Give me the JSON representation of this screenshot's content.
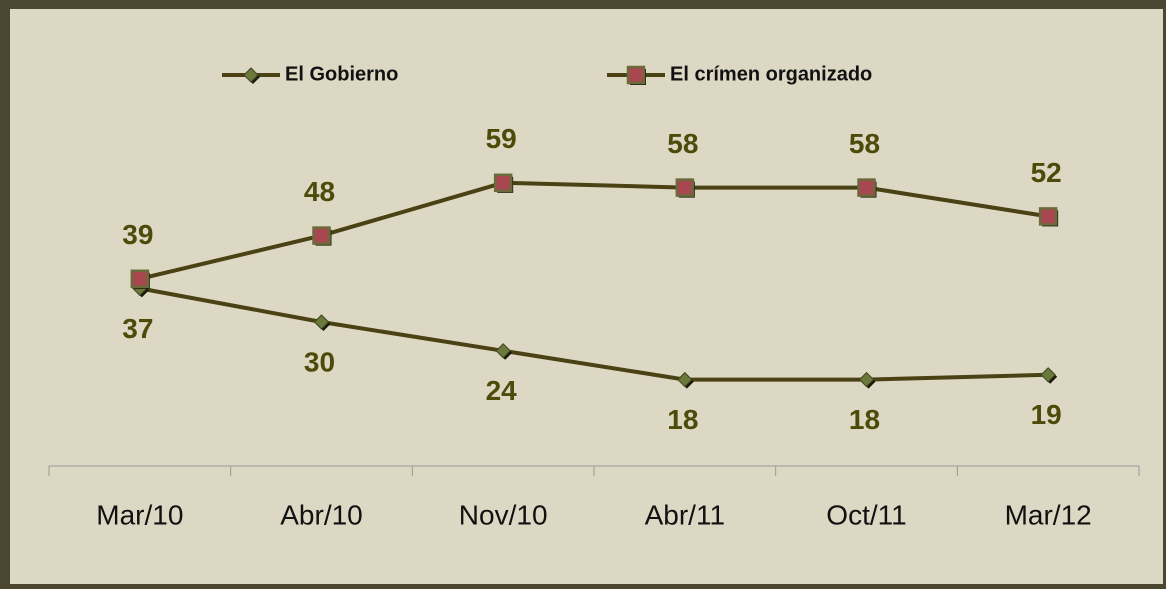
{
  "chart_data": {
    "type": "line",
    "categories": [
      "Mar/10",
      "Abr/10",
      "Nov/10",
      "Abr/11",
      "Oct/11",
      "Mar/12"
    ],
    "series": [
      {
        "name": "El Gobierno",
        "color": "#4a4214",
        "marker": "diamond",
        "values": [
          37,
          30,
          24,
          18,
          18,
          19
        ]
      },
      {
        "name": "El crímen organizado",
        "color": "#4a4214",
        "marker": "square",
        "values": [
          39,
          48,
          59,
          58,
          58,
          52
        ]
      }
    ],
    "ylim": [
      0,
      70
    ],
    "legend": "top"
  }
}
